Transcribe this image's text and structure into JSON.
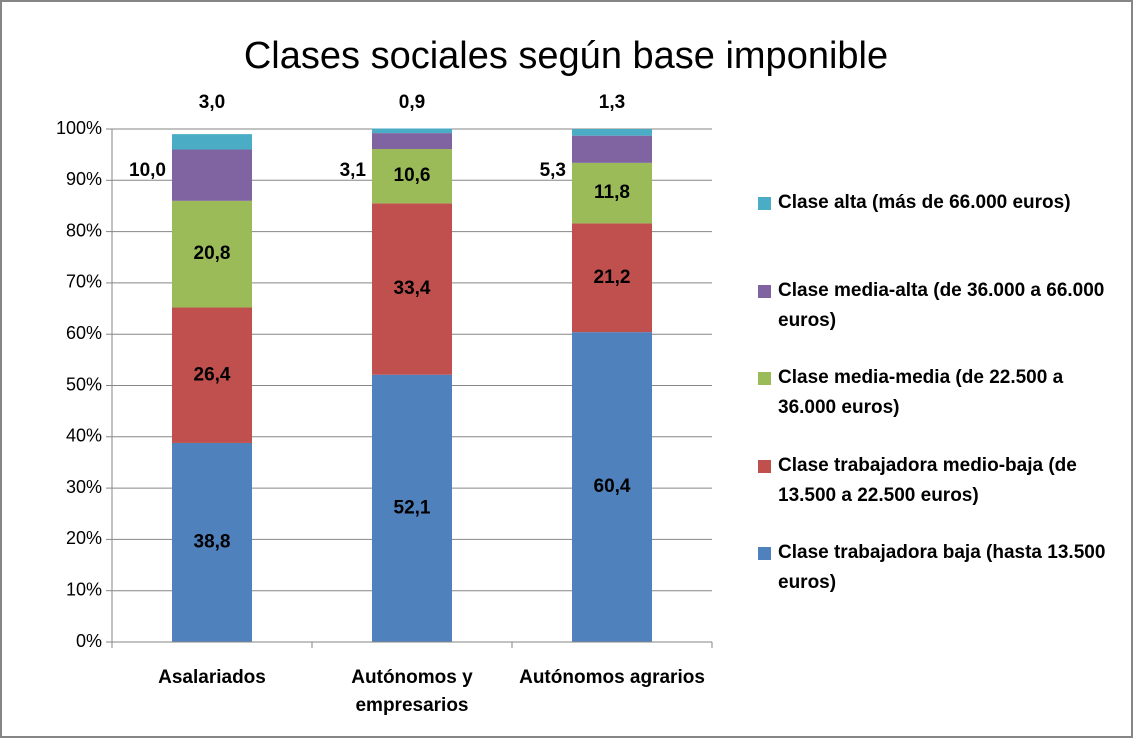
{
  "chart_data": {
    "type": "stacked_bar",
    "title": "Clases sociales según base imponible",
    "categories": [
      "Asalariados",
      "Autónomos y empresarios",
      "Autónomos agrarios"
    ],
    "series": [
      {
        "name": "Clase trabajadora baja (hasta 13.500 euros)",
        "color": "#4f81bd",
        "values": [
          38.8,
          52.1,
          60.4
        ],
        "value_labels": [
          "38,8",
          "52,1",
          "60,4"
        ]
      },
      {
        "name": "Clase trabajadora medio-baja (de 13.500 a 22.500 euros)",
        "color": "#c0504d",
        "values": [
          26.4,
          33.4,
          21.2
        ],
        "value_labels": [
          "26,4",
          "33,4",
          "21,2"
        ]
      },
      {
        "name": "Clase media-media (de 22.500 a 36.000 euros)",
        "color": "#9bbb59",
        "values": [
          20.8,
          10.6,
          11.8
        ],
        "value_labels": [
          "20,8",
          "10,6",
          "11,8"
        ]
      },
      {
        "name": "Clase media-alta (de 36.000 a 66.000 euros)",
        "color": "#8064a2",
        "values": [
          10.0,
          3.1,
          5.3
        ],
        "value_labels": [
          "10,0",
          "3,1",
          "5,3"
        ]
      },
      {
        "name": "Clase alta (más de 66.000 euros)",
        "color": "#4bacc6",
        "values": [
          3.0,
          0.9,
          1.3
        ],
        "value_labels": [
          "3,0",
          "0,9",
          "1,3"
        ]
      }
    ],
    "ylim": [
      0,
      100
    ],
    "yticks": [
      {
        "value": 0,
        "label": "0%"
      },
      {
        "value": 10,
        "label": "10%"
      },
      {
        "value": 20,
        "label": "20%"
      },
      {
        "value": 30,
        "label": "30%"
      },
      {
        "value": 40,
        "label": "40%"
      },
      {
        "value": 50,
        "label": "50%"
      },
      {
        "value": 60,
        "label": "60%"
      },
      {
        "value": 70,
        "label": "70%"
      },
      {
        "value": 80,
        "label": "80%"
      },
      {
        "value": 90,
        "label": "90%"
      },
      {
        "value": 100,
        "label": "100%"
      }
    ],
    "grid": true,
    "legend": "right"
  }
}
